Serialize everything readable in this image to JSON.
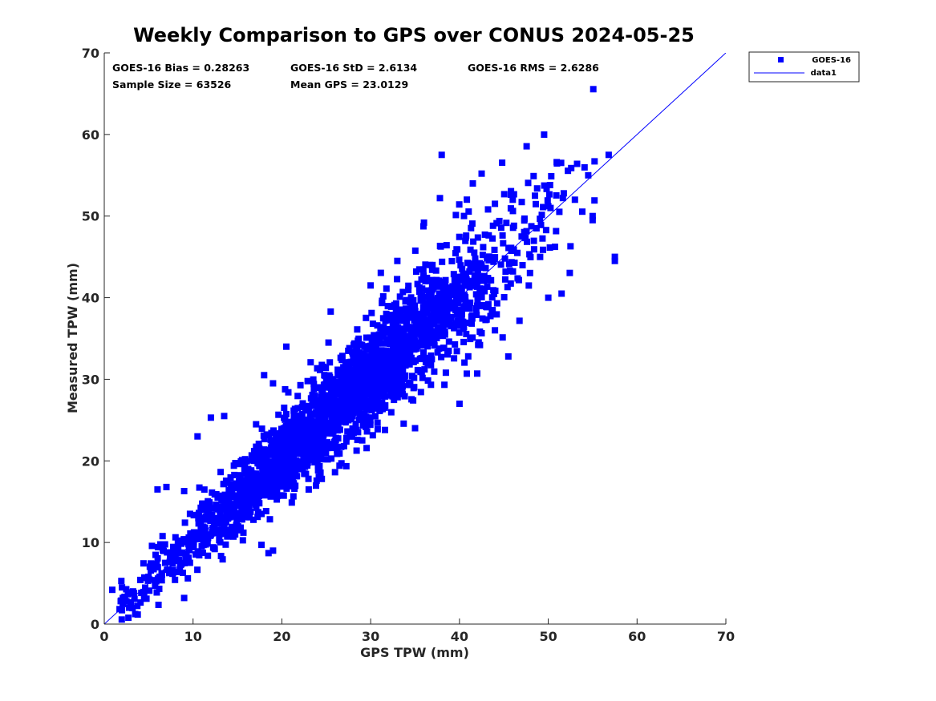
{
  "chart_data": {
    "type": "scatter",
    "title": "Weekly Comparison to GPS over CONUS 2024-05-25",
    "xlabel": "GPS TPW (mm)",
    "ylabel": "Measured TPW (mm)",
    "xlim": [
      0,
      70
    ],
    "ylim": [
      0,
      70
    ],
    "xticks": [
      "0",
      "10",
      "20",
      "30",
      "40",
      "50",
      "60",
      "70"
    ],
    "yticks": [
      "0",
      "10",
      "20",
      "30",
      "40",
      "50",
      "60",
      "70"
    ],
    "grid": false,
    "legend_position": "outside-top-right",
    "stats": {
      "bias": "GOES-16 Bias = 0.28263",
      "std": "GOES-16 StD = 2.6134",
      "rms": "GOES-16 RMS = 2.6286",
      "sample_size": "Sample Size = 63526",
      "mean_gps": "Mean GPS = 23.0129"
    },
    "series": [
      {
        "name": "GOES-16",
        "kind": "scatter",
        "marker": "square",
        "color": "#0000ff",
        "n_samples": 63526,
        "sampling": {
          "x_min": 1.5,
          "x_max": 57.5,
          "x_mean": 23.0,
          "bias": 0.28,
          "slope": 1.0,
          "spread_std": 2.6
        },
        "points": [
          [
            38.0,
            57.5
          ],
          [
            56.8,
            57.5
          ],
          [
            37.8,
            52.2
          ],
          [
            42.5,
            55.2
          ],
          [
            44.0,
            51.5
          ],
          [
            41.5,
            54.0
          ],
          [
            50.2,
            53.8
          ],
          [
            57.5,
            44.5
          ],
          [
            57.5,
            45.0
          ],
          [
            52.5,
            46.3
          ],
          [
            45.5,
            32.8
          ],
          [
            30.2,
            28.0
          ],
          [
            40.0,
            27.0
          ],
          [
            42.0,
            30.7
          ],
          [
            36.0,
            49.2
          ],
          [
            33.0,
            44.5
          ],
          [
            30.0,
            41.5
          ],
          [
            25.5,
            38.3
          ],
          [
            20.5,
            34.0
          ],
          [
            18.0,
            30.5
          ],
          [
            19.0,
            29.5
          ],
          [
            13.5,
            25.5
          ],
          [
            12.0,
            25.3
          ],
          [
            10.5,
            23.0
          ],
          [
            6.0,
            16.5
          ],
          [
            7.0,
            16.8
          ],
          [
            9.0,
            16.3
          ],
          [
            2.0,
            4.5
          ],
          [
            0.9,
            4.2
          ],
          [
            2.0,
            1.7
          ],
          [
            2.8,
            2.0
          ],
          [
            9.0,
            3.2
          ],
          [
            18.5,
            8.7
          ],
          [
            19.0,
            9.0
          ],
          [
            22.0,
            19.0
          ],
          [
            23.0,
            17.8
          ],
          [
            27.0,
            21.8
          ],
          [
            35.0,
            24.0
          ],
          [
            44.0,
            36.0
          ],
          [
            50.0,
            40.0
          ],
          [
            51.5,
            40.5
          ],
          [
            55.0,
            50.0
          ],
          [
            53.0,
            52.0
          ],
          [
            47.0,
            47.5
          ],
          [
            55.0,
            49.5
          ],
          [
            46.0,
            52.0
          ],
          [
            54.5,
            55.0
          ],
          [
            48.5,
            52.5
          ]
        ]
      },
      {
        "name": "data1",
        "kind": "line",
        "color": "#0000ff",
        "x": [
          0,
          70
        ],
        "y": [
          0,
          70
        ]
      }
    ]
  }
}
